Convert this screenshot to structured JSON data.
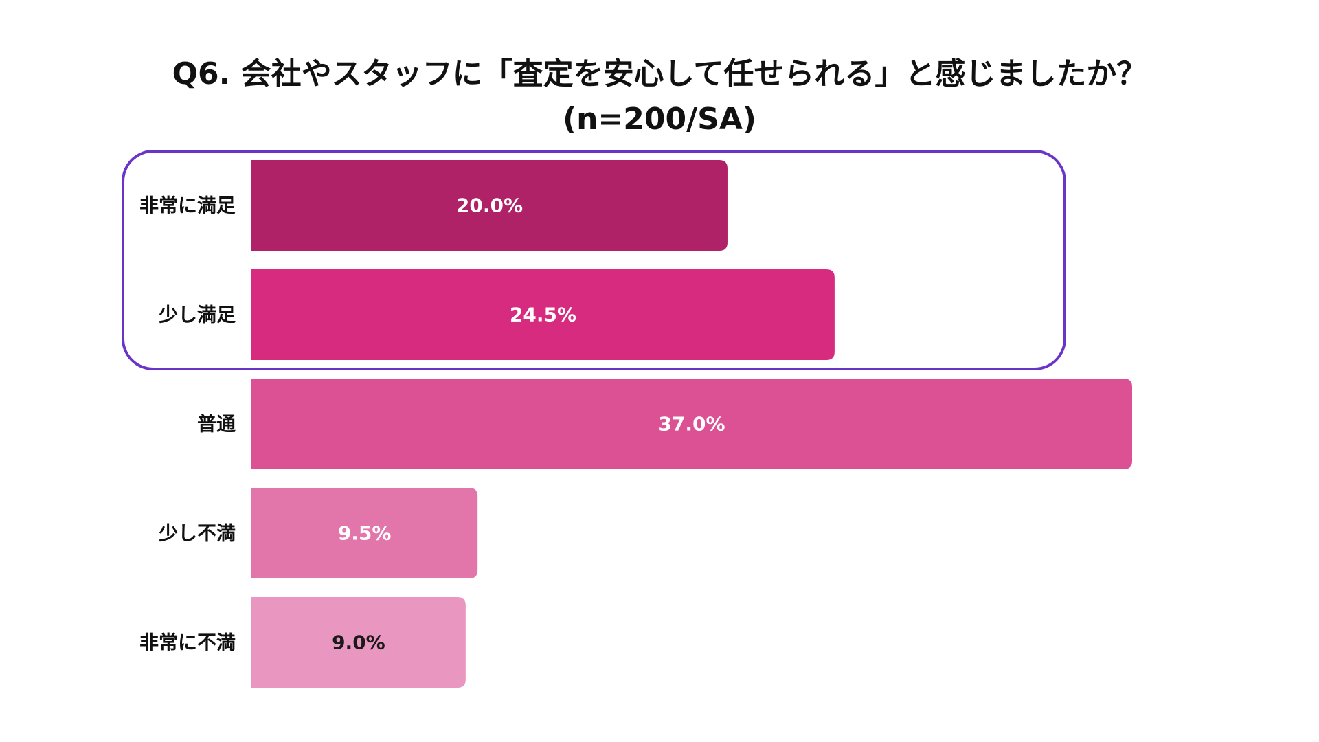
{
  "chart_data": {
    "type": "bar",
    "orientation": "horizontal",
    "title": "Q6. 会社やスタッフに「査定を安心して任せられる」と感じましたか？",
    "subtitle": "(n=200/SA)",
    "categories": [
      "非常に満足",
      "少し満足",
      "普通",
      "少し不満",
      "非常に不満"
    ],
    "values": [
      20.0,
      24.5,
      37.0,
      9.5,
      9.0
    ],
    "value_labels": [
      "20.0%",
      "24.5%",
      "37.0%",
      "9.5%",
      "9.0%"
    ],
    "unit": "%",
    "xlim": [
      0,
      37.0
    ],
    "grid": false,
    "legend": "none",
    "bar_colors": [
      "#b02268",
      "#d62b7e",
      "#dc5094",
      "#e276aa",
      "#e996c0"
    ],
    "value_label_colors": [
      "#ffffff",
      "#ffffff",
      "#ffffff",
      "#ffffff",
      "#1a1a1a"
    ],
    "highlight": {
      "categories": [
        "非常に満足",
        "少し満足"
      ],
      "color": "#6a34c8"
    }
  }
}
